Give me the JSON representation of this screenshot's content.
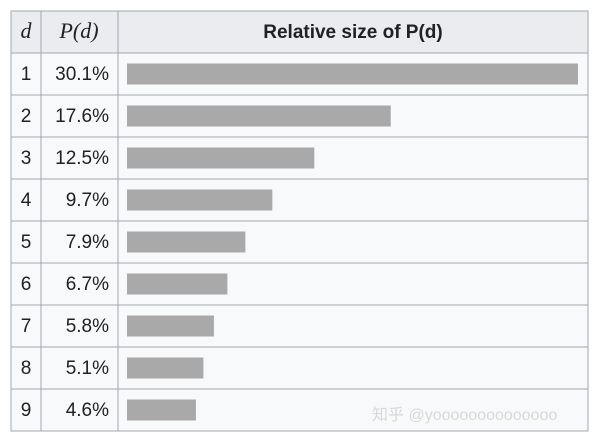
{
  "chart_data": {
    "type": "bar",
    "columns": [
      "d",
      "P(d)",
      "Relative size of P(d)"
    ],
    "categories": [
      "1",
      "2",
      "3",
      "4",
      "5",
      "6",
      "7",
      "8",
      "9"
    ],
    "values": [
      30.1,
      17.6,
      12.5,
      9.7,
      7.9,
      6.7,
      5.8,
      5.1,
      4.6
    ],
    "value_labels": [
      "30.1%",
      "17.6%",
      "12.5%",
      "9.7%",
      "7.9%",
      "6.7%",
      "5.8%",
      "5.1%",
      "4.6%"
    ],
    "color": "#a9a9a9",
    "watermark": "知乎 @yoooooooooooooo"
  }
}
